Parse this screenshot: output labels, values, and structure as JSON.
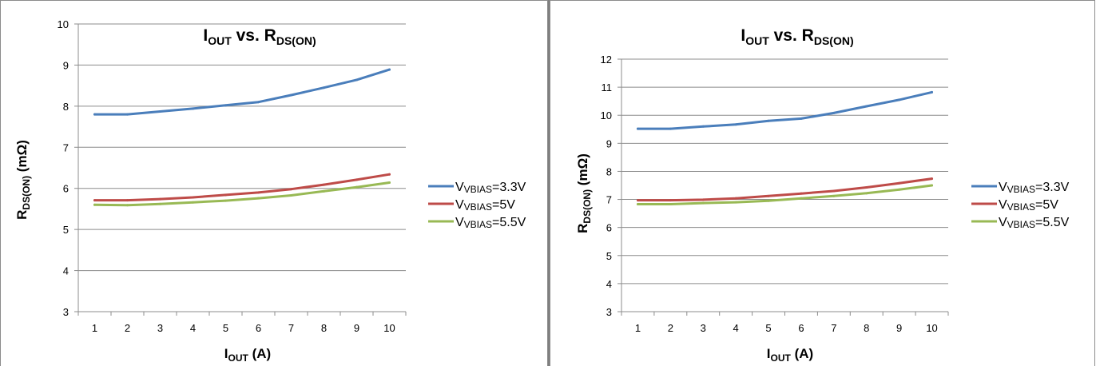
{
  "chart_data": [
    {
      "type": "line",
      "title": {
        "main": "I",
        "sub1": "OUT",
        "mid": " vs. R",
        "sub2": "DS(ON)"
      },
      "xlabel": {
        "main": "I",
        "sub": "OUT",
        "suffix": " (A)"
      },
      "ylabel": {
        "main": "R",
        "sub": "DS(ON)",
        "suffix": " (mΩ)"
      },
      "x": [
        1,
        2,
        3,
        4,
        5,
        6,
        7,
        8,
        9,
        10
      ],
      "ylim": [
        3,
        10
      ],
      "yticks": [
        3,
        4,
        5,
        6,
        7,
        8,
        9,
        10
      ],
      "grid": true,
      "legend_position": "right",
      "series": [
        {
          "name": {
            "main": "V",
            "sub": "VBIAS",
            "suffix": "=3.3V"
          },
          "color": "#4A7EBB",
          "values": [
            7.8,
            7.8,
            7.87,
            7.94,
            8.02,
            8.1,
            8.27,
            8.45,
            8.64,
            8.89
          ]
        },
        {
          "name": {
            "main": "V",
            "sub": "VBIAS",
            "suffix": "=5V"
          },
          "color": "#BE4B48",
          "values": [
            5.71,
            5.71,
            5.74,
            5.78,
            5.84,
            5.9,
            5.98,
            6.09,
            6.21,
            6.34
          ]
        },
        {
          "name": {
            "main": "V",
            "sub": "VBIAS",
            "suffix": "=5.5V"
          },
          "color": "#98B954",
          "values": [
            5.6,
            5.59,
            5.62,
            5.66,
            5.7,
            5.76,
            5.83,
            5.93,
            6.03,
            6.14
          ]
        }
      ]
    },
    {
      "type": "line",
      "title": {
        "main": "I",
        "sub1": "OUT",
        "mid": " vs. R",
        "sub2": "DS(ON)"
      },
      "xlabel": {
        "main": "I",
        "sub": "OUT",
        "suffix": " (A)"
      },
      "ylabel": {
        "main": "R",
        "sub": "DS(ON)",
        "suffix": " (mΩ)"
      },
      "x": [
        1,
        2,
        3,
        4,
        5,
        6,
        7,
        8,
        9,
        10
      ],
      "ylim": [
        3,
        12
      ],
      "yticks": [
        3,
        4,
        5,
        6,
        7,
        8,
        9,
        10,
        11,
        12
      ],
      "grid": true,
      "legend_position": "right",
      "series": [
        {
          "name": {
            "main": "V",
            "sub": "VBIAS",
            "suffix": "=3.3V"
          },
          "color": "#4A7EBB",
          "values": [
            9.52,
            9.52,
            9.6,
            9.67,
            9.8,
            9.88,
            10.08,
            10.32,
            10.55,
            10.82
          ]
        },
        {
          "name": {
            "main": "V",
            "sub": "VBIAS",
            "suffix": "=5V"
          },
          "color": "#BE4B48",
          "values": [
            6.97,
            6.97,
            6.99,
            7.04,
            7.12,
            7.21,
            7.3,
            7.43,
            7.58,
            7.74
          ]
        },
        {
          "name": {
            "main": "V",
            "sub": "VBIAS",
            "suffix": "=5.5V"
          },
          "color": "#98B954",
          "values": [
            6.83,
            6.83,
            6.87,
            6.9,
            6.95,
            7.04,
            7.12,
            7.22,
            7.35,
            7.5
          ]
        }
      ]
    }
  ]
}
